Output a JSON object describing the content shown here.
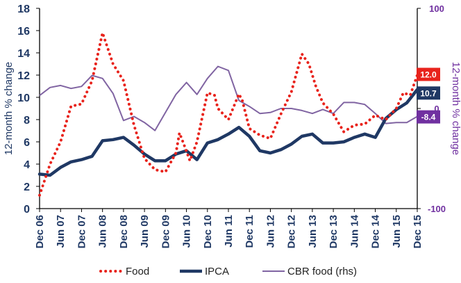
{
  "chart_data": {
    "type": "line",
    "ylabel": "12-month % change",
    "y2label": "12-month % change",
    "ylim": [
      0,
      18
    ],
    "yticks": [
      "0",
      "2",
      "4",
      "6",
      "8",
      "10",
      "12",
      "14",
      "16",
      "18"
    ],
    "y2lim": [
      -100,
      100
    ],
    "y2ticks": [
      "-100",
      "0",
      "100"
    ],
    "x_start": "2006-12",
    "x_end": "2015-12",
    "xticks": [
      {
        "date": "2006-12",
        "label": "Dec 06"
      },
      {
        "date": "2007-06",
        "label": "Jun 07"
      },
      {
        "date": "2007-12",
        "label": "Dec 07"
      },
      {
        "date": "2008-06",
        "label": "Jun 08"
      },
      {
        "date": "2008-12",
        "label": "Dec 08"
      },
      {
        "date": "2009-06",
        "label": "Jun 09"
      },
      {
        "date": "2009-12",
        "label": "Dec 09"
      },
      {
        "date": "2010-06",
        "label": "Jun 10"
      },
      {
        "date": "2010-12",
        "label": "Dec 10"
      },
      {
        "date": "2011-06",
        "label": "Jun 11"
      },
      {
        "date": "2011-12",
        "label": "Dec 11"
      },
      {
        "date": "2012-06",
        "label": "Jun 12"
      },
      {
        "date": "2012-12",
        "label": "Dec 12"
      },
      {
        "date": "2013-06",
        "label": "Jun 13"
      },
      {
        "date": "2013-12",
        "label": "Dec 13"
      },
      {
        "date": "2014-06",
        "label": "Jun 14"
      },
      {
        "date": "2014-12",
        "label": "Dec 14"
      },
      {
        "date": "2015-06",
        "label": "Jun 15"
      },
      {
        "date": "2015-12",
        "label": "Dec 15"
      }
    ],
    "grid": false,
    "legend_position": "bottom",
    "series": [
      {
        "name": "Food",
        "axis": "left",
        "style": "dotted",
        "color": "#e8231c",
        "points": [
          [
            "2006-12",
            1.2
          ],
          [
            "2007-03",
            4.0
          ],
          [
            "2007-06",
            6.0
          ],
          [
            "2007-09",
            9.2
          ],
          [
            "2007-12",
            9.4
          ],
          [
            "2008-03",
            11.5
          ],
          [
            "2008-06",
            15.8
          ],
          [
            "2008-09",
            13.0
          ],
          [
            "2008-12",
            11.5
          ],
          [
            "2009-03",
            7.5
          ],
          [
            "2009-06",
            4.5
          ],
          [
            "2009-09",
            3.5
          ],
          [
            "2009-12",
            3.3
          ],
          [
            "2010-03",
            5.0
          ],
          [
            "2010-04",
            6.8
          ],
          [
            "2010-05",
            6.0
          ],
          [
            "2010-07",
            4.3
          ],
          [
            "2010-09",
            6.0
          ],
          [
            "2010-12",
            10.4
          ],
          [
            "2011-02",
            10.2
          ],
          [
            "2011-03",
            9.0
          ],
          [
            "2011-06",
            8.0
          ],
          [
            "2011-09",
            10.3
          ],
          [
            "2011-10",
            9.7
          ],
          [
            "2011-12",
            7.2
          ],
          [
            "2012-03",
            6.6
          ],
          [
            "2012-06",
            6.3
          ],
          [
            "2012-09",
            8.5
          ],
          [
            "2012-12",
            10.5
          ],
          [
            "2013-03",
            13.9
          ],
          [
            "2013-05",
            13.0
          ],
          [
            "2013-07",
            11.0
          ],
          [
            "2013-09",
            9.5
          ],
          [
            "2013-12",
            8.5
          ],
          [
            "2014-03",
            6.9
          ],
          [
            "2014-06",
            7.5
          ],
          [
            "2014-09",
            7.6
          ],
          [
            "2014-12",
            8.4
          ],
          [
            "2015-03",
            8.0
          ],
          [
            "2015-06",
            9.0
          ],
          [
            "2015-08",
            10.4
          ],
          [
            "2015-10",
            10.2
          ],
          [
            "2015-12",
            12.0
          ]
        ]
      },
      {
        "name": "IPCA",
        "axis": "left",
        "style": "solid-thick",
        "color": "#1f3864",
        "points": [
          [
            "2006-12",
            3.1
          ],
          [
            "2007-03",
            3.0
          ],
          [
            "2007-06",
            3.7
          ],
          [
            "2007-09",
            4.2
          ],
          [
            "2007-12",
            4.4
          ],
          [
            "2008-03",
            4.7
          ],
          [
            "2008-06",
            6.1
          ],
          [
            "2008-09",
            6.2
          ],
          [
            "2008-12",
            6.4
          ],
          [
            "2009-03",
            5.7
          ],
          [
            "2009-06",
            4.9
          ],
          [
            "2009-09",
            4.3
          ],
          [
            "2009-12",
            4.3
          ],
          [
            "2010-03",
            4.9
          ],
          [
            "2010-06",
            5.2
          ],
          [
            "2010-09",
            4.4
          ],
          [
            "2010-12",
            5.9
          ],
          [
            "2011-03",
            6.2
          ],
          [
            "2011-06",
            6.7
          ],
          [
            "2011-09",
            7.3
          ],
          [
            "2011-12",
            6.5
          ],
          [
            "2012-03",
            5.2
          ],
          [
            "2012-06",
            5.0
          ],
          [
            "2012-09",
            5.3
          ],
          [
            "2012-12",
            5.8
          ],
          [
            "2013-03",
            6.5
          ],
          [
            "2013-06",
            6.7
          ],
          [
            "2013-09",
            5.9
          ],
          [
            "2013-12",
            5.9
          ],
          [
            "2014-03",
            6.0
          ],
          [
            "2014-06",
            6.4
          ],
          [
            "2014-09",
            6.7
          ],
          [
            "2014-12",
            6.4
          ],
          [
            "2015-03",
            8.1
          ],
          [
            "2015-06",
            8.9
          ],
          [
            "2015-09",
            9.5
          ],
          [
            "2015-12",
            10.7
          ]
        ]
      },
      {
        "name": "CBR food (rhs)",
        "axis": "right",
        "style": "solid-thin",
        "color": "#8064a2",
        "points": [
          [
            "2006-12",
            13
          ],
          [
            "2007-03",
            21
          ],
          [
            "2007-06",
            23
          ],
          [
            "2007-09",
            20
          ],
          [
            "2007-12",
            22
          ],
          [
            "2008-03",
            33
          ],
          [
            "2008-06",
            30
          ],
          [
            "2008-09",
            15
          ],
          [
            "2008-12",
            -12
          ],
          [
            "2009-03",
            -8
          ],
          [
            "2009-06",
            -14
          ],
          [
            "2009-09",
            -22
          ],
          [
            "2009-12",
            -4
          ],
          [
            "2010-03",
            14
          ],
          [
            "2010-06",
            26
          ],
          [
            "2010-09",
            14
          ],
          [
            "2010-12",
            30
          ],
          [
            "2011-03",
            42
          ],
          [
            "2011-06",
            38
          ],
          [
            "2011-09",
            8
          ],
          [
            "2011-12",
            2
          ],
          [
            "2012-03",
            -5
          ],
          [
            "2012-06",
            -4
          ],
          [
            "2012-09",
            0
          ],
          [
            "2012-12",
            0
          ],
          [
            "2013-03",
            -2
          ],
          [
            "2013-06",
            -5
          ],
          [
            "2013-09",
            -1
          ],
          [
            "2013-12",
            -5
          ],
          [
            "2014-03",
            6
          ],
          [
            "2014-06",
            6
          ],
          [
            "2014-09",
            4
          ],
          [
            "2014-12",
            -5
          ],
          [
            "2015-03",
            -15
          ],
          [
            "2015-06",
            -14
          ],
          [
            "2015-09",
            -14
          ],
          [
            "2015-12",
            -8
          ]
        ]
      }
    ],
    "end_labels": [
      {
        "text": "12.0",
        "value": 12.0,
        "axis": "left",
        "color": "#e8231c"
      },
      {
        "text": "10.7",
        "value": 10.7,
        "axis": "left",
        "color": "#1f3864"
      },
      {
        "text": "-8.4",
        "value": -8.4,
        "axis": "right",
        "color": "#7030a0"
      }
    ]
  }
}
